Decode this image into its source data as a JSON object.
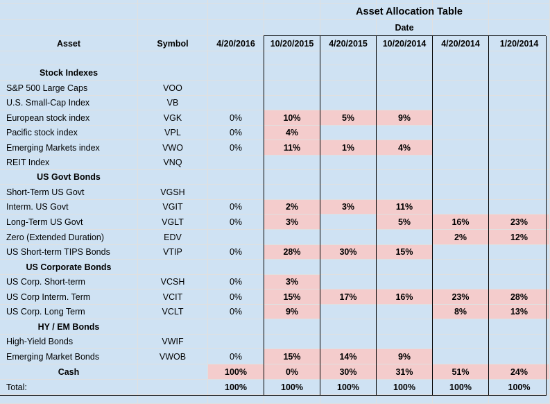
{
  "title": "Asset Allocation Table",
  "date_label": "Date",
  "headers": {
    "asset": "Asset",
    "symbol": "Symbol",
    "dates": [
      "4/20/2016",
      "10/20/2015",
      "4/20/2015",
      "10/20/2014",
      "4/20/2014",
      "1/20/2014"
    ]
  },
  "colors": {
    "background": "#cfe2f3",
    "highlight": "#f4cccc"
  },
  "rows": [
    {
      "type": "section",
      "label": "Stock Indexes"
    },
    {
      "type": "data",
      "asset": "S&P 500 Large Caps",
      "symbol": "VOO",
      "values": [
        "",
        "",
        "",
        "",
        "",
        ""
      ]
    },
    {
      "type": "data",
      "asset": "U.S. Small-Cap Index",
      "symbol": "VB",
      "values": [
        "",
        "",
        "",
        "",
        "",
        ""
      ]
    },
    {
      "type": "data",
      "asset": "European stock index",
      "symbol": "VGK",
      "values": [
        "0%",
        "10%",
        "5%",
        "9%",
        "",
        ""
      ]
    },
    {
      "type": "data",
      "asset": "Pacific stock index",
      "symbol": "VPL",
      "values": [
        "0%",
        "4%",
        "",
        "",
        "",
        ""
      ]
    },
    {
      "type": "data",
      "asset": "Emerging Markets index",
      "symbol": "VWO",
      "values": [
        "0%",
        "11%",
        "1%",
        "4%",
        "",
        ""
      ]
    },
    {
      "type": "data",
      "asset": "REIT Index",
      "symbol": "VNQ",
      "values": [
        "",
        "",
        "",
        "",
        "",
        ""
      ]
    },
    {
      "type": "section",
      "label": "US Govt Bonds"
    },
    {
      "type": "data",
      "asset": "Short-Term US Govt",
      "symbol": "VGSH",
      "values": [
        "",
        "",
        "",
        "",
        "",
        ""
      ]
    },
    {
      "type": "data",
      "asset": "Interm. US Govt",
      "symbol": "VGIT",
      "values": [
        "0%",
        "2%",
        "3%",
        "11%",
        "",
        ""
      ]
    },
    {
      "type": "data",
      "asset": "Long-Term US Govt",
      "symbol": "VGLT",
      "values": [
        "0%",
        "3%",
        "",
        "5%",
        "16%",
        "23%"
      ]
    },
    {
      "type": "data",
      "asset": "Zero (Extended Duration)",
      "symbol": "EDV",
      "values": [
        "",
        "",
        "",
        "",
        "2%",
        "12%"
      ]
    },
    {
      "type": "data",
      "asset": "US Short-term TIPS Bonds",
      "symbol": "VTIP",
      "values": [
        "0%",
        "28%",
        "30%",
        "15%",
        "",
        ""
      ]
    },
    {
      "type": "section",
      "label": "US Corporate Bonds"
    },
    {
      "type": "data",
      "asset": "US Corp. Short-term",
      "symbol": "VCSH",
      "values": [
        "0%",
        "3%",
        "",
        "",
        "",
        ""
      ]
    },
    {
      "type": "data",
      "asset": "US Corp Interm. Term",
      "symbol": "VCIT",
      "values": [
        "0%",
        "15%",
        "17%",
        "16%",
        "23%",
        "28%"
      ]
    },
    {
      "type": "data",
      "asset": "US Corp. Long Term",
      "symbol": "VCLT",
      "values": [
        "0%",
        "9%",
        "",
        "",
        "8%",
        "13%"
      ]
    },
    {
      "type": "section",
      "label": "HY / EM Bonds"
    },
    {
      "type": "data",
      "asset": "High-Yield Bonds",
      "symbol": "VWIF",
      "values": [
        "",
        "",
        "",
        "",
        "",
        ""
      ]
    },
    {
      "type": "data",
      "asset": "Emerging Market Bonds",
      "symbol": "VWOB",
      "values": [
        "0%",
        "15%",
        "14%",
        "9%",
        "",
        ""
      ]
    },
    {
      "type": "cash",
      "asset": "Cash",
      "symbol": "",
      "values": [
        "100%",
        "0%",
        "30%",
        "31%",
        "51%",
        "24%"
      ]
    },
    {
      "type": "total",
      "asset": "Total:",
      "symbol": "",
      "values": [
        "100%",
        "100%",
        "100%",
        "100%",
        "100%",
        "100%"
      ]
    }
  ]
}
